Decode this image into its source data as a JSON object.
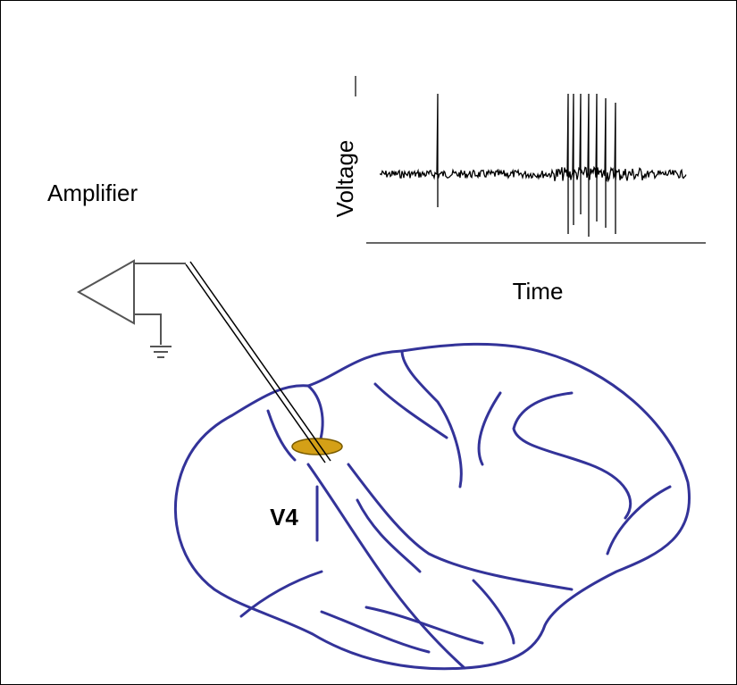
{
  "labels": {
    "amplifier": "Amplifier",
    "y_axis": "Voltage",
    "x_axis": "Time",
    "area": "V4"
  }
}
